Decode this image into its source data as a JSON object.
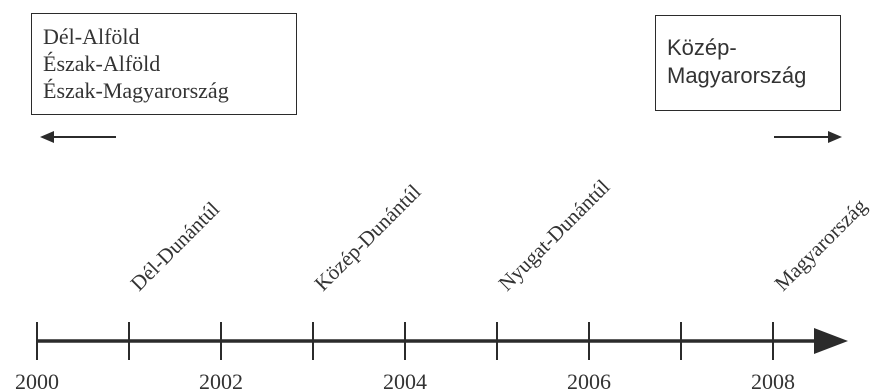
{
  "left_box": {
    "lines": [
      "Dél-Alföld",
      "Észak-Alföld",
      "Észak-Magyarország"
    ],
    "arrow_direction": "left"
  },
  "right_box": {
    "lines": [
      "Közép-",
      "Magyarország"
    ],
    "arrow_direction": "right"
  },
  "timeline": {
    "start_year": 2000,
    "end_year": 2008,
    "tick_step": 1,
    "year_labels": [
      "2000",
      "2002",
      "2004",
      "2006",
      "2008"
    ],
    "events": [
      {
        "label": "Dél-Dunántúl",
        "year": 2001
      },
      {
        "label": "Közép-Dunántúl",
        "year": 2003
      },
      {
        "label": "Nyugat-Dunántúl",
        "year": 2005
      },
      {
        "label": "Magyarország",
        "year": 2008
      }
    ]
  },
  "colors": {
    "ink": "#2b2b2b",
    "text": "#333333"
  }
}
